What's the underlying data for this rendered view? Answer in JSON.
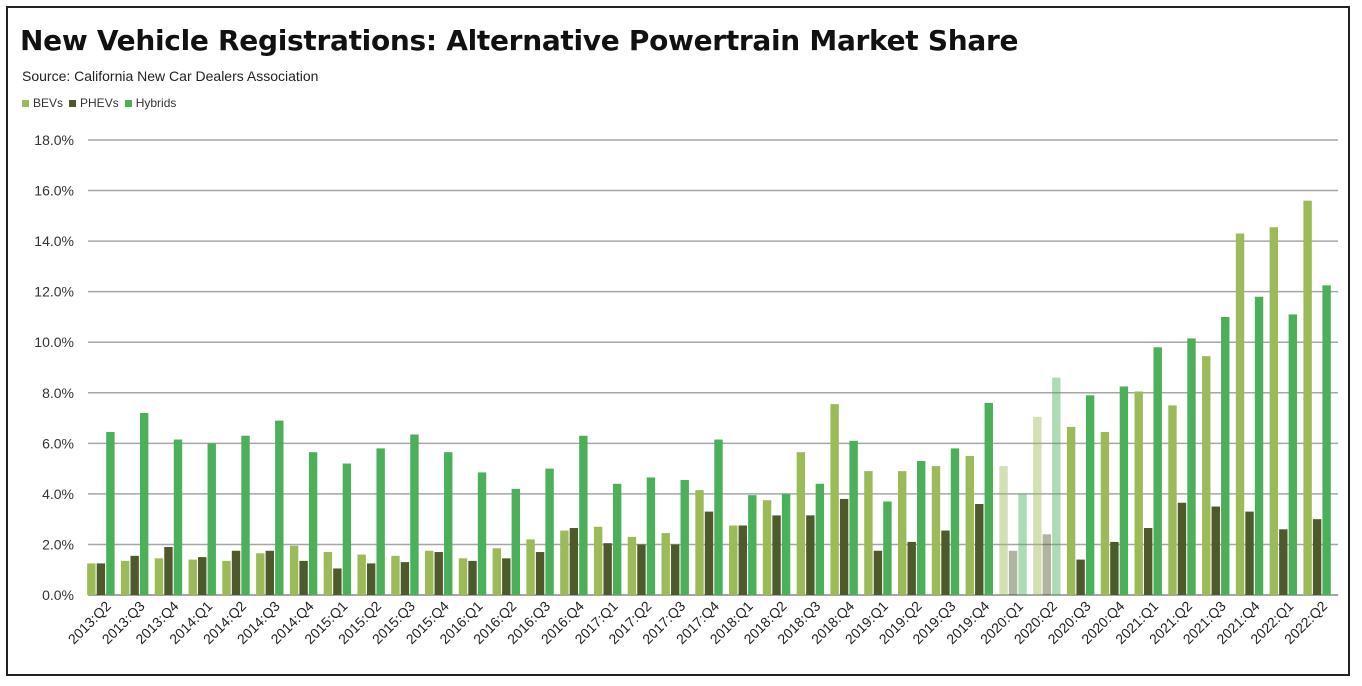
{
  "title": "New Vehicle Registrations:  Alternative Powertrain Market Share",
  "subtitle": "Source:  California New Car Dealers Association",
  "chart_data": {
    "type": "bar",
    "categories": [
      "2013:Q2",
      "2013:Q3",
      "2013:Q4",
      "2014:Q1",
      "2014:Q2",
      "2014:Q3",
      "2014:Q4",
      "2015:Q1",
      "2015:Q2",
      "2015:Q3",
      "2015:Q4",
      "2016:Q1",
      "2016:Q2",
      "2016:Q3",
      "2016:Q4",
      "2017:Q1",
      "2017:Q2",
      "2017:Q3",
      "2017:Q4",
      "2018:Q1",
      "2018:Q2",
      "2018:Q3",
      "2018:Q4",
      "2019:Q1",
      "2019:Q2",
      "2019:Q3",
      "2019:Q4",
      "2020:Q1",
      "2020:Q2",
      "2020:Q3",
      "2020:Q4",
      "2021:Q1",
      "2021:Q2",
      "2021:Q3",
      "2021:Q4",
      "2022:Q1",
      "2022:Q2"
    ],
    "series": [
      {
        "name": "BEVs",
        "color": "#9bbb59",
        "values": [
          1.25,
          1.35,
          1.45,
          1.4,
          1.35,
          1.65,
          1.95,
          1.7,
          1.6,
          1.55,
          1.75,
          1.45,
          1.85,
          2.2,
          2.55,
          2.7,
          2.3,
          2.45,
          4.15,
          2.75,
          3.75,
          5.65,
          7.55,
          4.9,
          4.9,
          5.1,
          5.5,
          5.1,
          7.05,
          6.65,
          6.45,
          8.05,
          7.5,
          9.45,
          14.3,
          14.55,
          15.6
        ]
      },
      {
        "name": "PHEVs",
        "color": "#4f5a2c",
        "values": [
          1.25,
          1.55,
          1.9,
          1.5,
          1.75,
          1.75,
          1.35,
          1.05,
          1.25,
          1.3,
          1.7,
          1.35,
          1.45,
          1.7,
          2.65,
          2.05,
          2.0,
          2.0,
          3.3,
          2.75,
          3.15,
          3.15,
          3.8,
          1.75,
          2.1,
          2.55,
          3.6,
          1.75,
          2.4,
          1.4,
          2.1,
          2.65,
          3.65,
          3.5,
          3.3,
          2.6,
          3.0
        ]
      },
      {
        "name": "Hybrids",
        "color": "#4cb05a",
        "values": [
          6.45,
          7.2,
          6.15,
          6.0,
          6.3,
          6.9,
          5.65,
          5.2,
          5.8,
          6.35,
          5.65,
          4.85,
          4.2,
          5.0,
          6.3,
          4.4,
          4.65,
          4.55,
          6.15,
          3.95,
          4.0,
          4.4,
          6.1,
          3.7,
          5.3,
          5.8,
          7.6,
          4.0,
          8.6,
          7.9,
          8.25,
          9.8,
          10.15,
          11.0,
          11.8,
          11.1,
          12.25
        ]
      }
    ],
    "faded_categories": [
      "2020:Q1",
      "2020:Q2"
    ],
    "y_ticks": [
      "0.0%",
      "2.0%",
      "4.0%",
      "6.0%",
      "8.0%",
      "10.0%",
      "12.0%",
      "14.0%",
      "16.0%",
      "18.0%"
    ],
    "ylim": [
      0,
      18
    ],
    "y_format": "percent",
    "grid": true,
    "legend_position": "top-left"
  }
}
